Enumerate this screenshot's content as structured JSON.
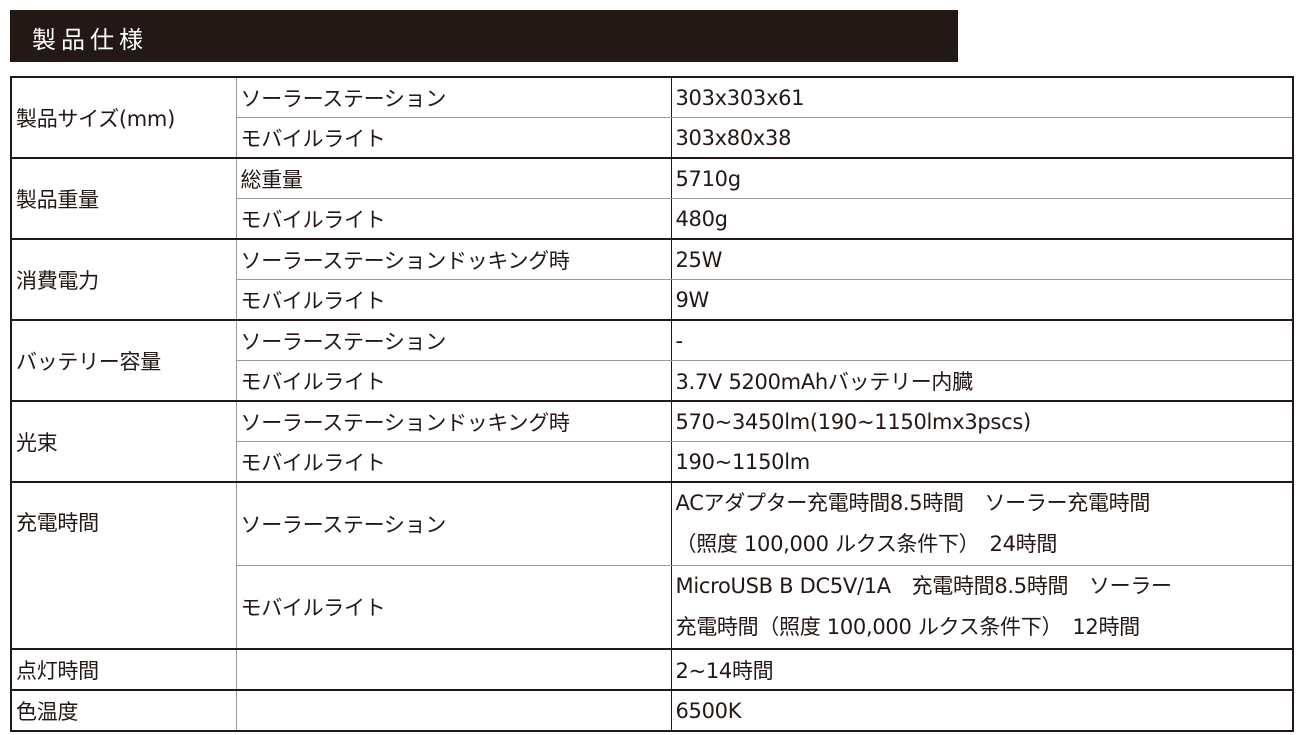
{
  "header": {
    "title": "製品仕様"
  },
  "spec": {
    "size": {
      "label": "製品サイズ(mm)",
      "rows": [
        {
          "sub": "ソーラーステーション",
          "value": "303x303x61"
        },
        {
          "sub": "モバイルライト",
          "value": "303x80x38"
        }
      ]
    },
    "weight": {
      "label": "製品重量",
      "rows": [
        {
          "sub": "総重量",
          "value": "5710g"
        },
        {
          "sub": "モバイルライト",
          "value": "480g"
        }
      ]
    },
    "power": {
      "label": "消費電力",
      "rows": [
        {
          "sub": "ソーラーステーションドッキング時",
          "value": "25W"
        },
        {
          "sub": "モバイルライト",
          "value": "9W"
        }
      ]
    },
    "battery": {
      "label": "バッテリー容量",
      "rows": [
        {
          "sub": "ソーラーステーション",
          "value": "-"
        },
        {
          "sub": "モバイルライト",
          "value": "3.7V 5200mAhバッテリー内臓"
        }
      ]
    },
    "flux": {
      "label": "光束",
      "rows": [
        {
          "sub": "ソーラーステーションドッキング時",
          "value": "570~3450lm(190~1150lmx3pscs)"
        },
        {
          "sub": "モバイルライト",
          "value": "190~1150lm"
        }
      ]
    },
    "charge": {
      "label": "充電時間",
      "rows": [
        {
          "sub": "ソーラーステーション",
          "lines": [
            "ACアダプター充電時間8.5時間　ソーラー充電時間",
            "（照度 100,000 ルクス条件下）　24時間"
          ]
        },
        {
          "sub": "モバイルライト",
          "lines": [
            "MicroUSB B DC5V/1A　充電時間8.5時間　ソーラー",
            "充電時間（照度 100,000 ルクス条件下）　12時間"
          ]
        }
      ]
    },
    "runtime": {
      "label": "点灯時間",
      "sub": "",
      "value": "2~14時間"
    },
    "color_temp": {
      "label": "色温度",
      "sub": "",
      "value": "6500K"
    }
  }
}
